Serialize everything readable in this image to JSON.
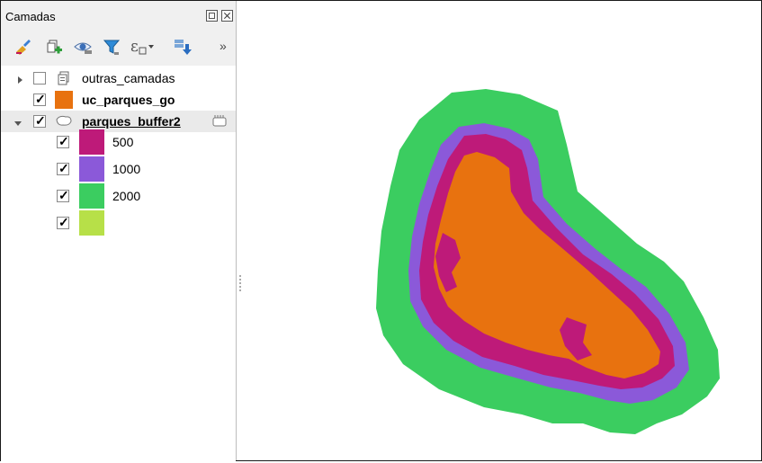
{
  "panel": {
    "title": "Camadas",
    "overflow_label": "»"
  },
  "toolbar": {
    "icons": [
      "style-brush-icon",
      "add-group-icon",
      "eye-visibility-icon",
      "filter-icon",
      "expression-filter-icon",
      "dropdown-arrow-icon",
      "expand-all-icon"
    ],
    "expression_label": "ε"
  },
  "layers": [
    {
      "name": "outras_camadas",
      "checked": false,
      "icon": "group-icon",
      "bold": false
    },
    {
      "name": "uc_parques_go",
      "checked": true,
      "icon": "fill-swatch",
      "color": "#E8720F",
      "bold": true
    },
    {
      "name": "parques_buffer2",
      "checked": true,
      "icon": "polygon-layer-icon",
      "bold": true,
      "underline": true,
      "expanded": true,
      "classes": [
        {
          "label": "500",
          "color": "#BE1A79",
          "checked": true
        },
        {
          "label": "1000",
          "color": "#8B59D9",
          "checked": true
        },
        {
          "label": "2000",
          "color": "#3BCD60",
          "checked": true
        },
        {
          "label": "",
          "color": "#B7E048",
          "checked": true
        }
      ]
    }
  ],
  "map_colors": {
    "outer": "#3BCD60",
    "middle": "#8B59D9",
    "inner": "#BE1A79",
    "core": "#E8720F"
  }
}
